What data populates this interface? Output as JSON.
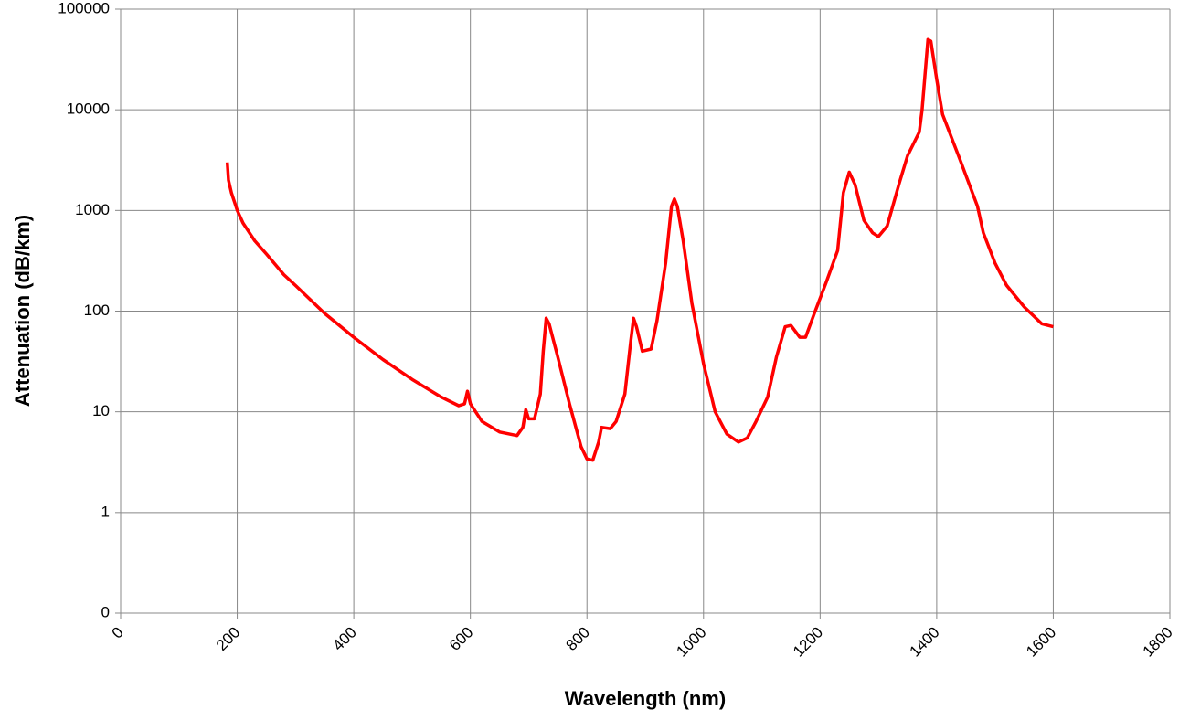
{
  "chart_data": {
    "type": "line",
    "x_label": "Wavelength (nm)",
    "y_label": "Attenuation (dB/km)",
    "log_y": true,
    "grid": true,
    "xlim": [
      0,
      1800
    ],
    "xticks": [
      0,
      200,
      400,
      600,
      800,
      1000,
      1200,
      1400,
      1600,
      1800
    ],
    "ylim": [
      0.1,
      100000
    ],
    "yticks": [
      {
        "value": 0.1,
        "label": "0"
      },
      1,
      10,
      100,
      1000,
      10000,
      100000
    ],
    "series": [
      {
        "name": "Attenuation",
        "color": "#ff0000",
        "x": [
          183,
          185,
          190,
          200,
          210,
          230,
          250,
          280,
          300,
          350,
          400,
          450,
          500,
          550,
          580,
          590,
          595,
          600,
          620,
          650,
          680,
          690,
          695,
          700,
          710,
          720,
          725,
          730,
          735,
          750,
          770,
          790,
          800,
          810,
          820,
          825,
          840,
          850,
          865,
          875,
          880,
          885,
          895,
          910,
          920,
          935,
          945,
          950,
          955,
          965,
          980,
          1000,
          1020,
          1040,
          1060,
          1075,
          1090,
          1110,
          1125,
          1140,
          1150,
          1165,
          1175,
          1190,
          1210,
          1230,
          1240,
          1250,
          1260,
          1275,
          1290,
          1300,
          1315,
          1335,
          1350,
          1370,
          1375,
          1385,
          1390,
          1400,
          1410,
          1440,
          1470,
          1480,
          1500,
          1520,
          1550,
          1580,
          1600
        ],
        "values": [
          3000,
          2000,
          1500,
          1000,
          750,
          500,
          370,
          230,
          180,
          95,
          55,
          33,
          21,
          14,
          11.5,
          12,
          16,
          12,
          8,
          6.3,
          5.8,
          7,
          10.5,
          8.5,
          8.5,
          15,
          40,
          85,
          75,
          35,
          12,
          4.5,
          3.4,
          3.3,
          5,
          7,
          6.8,
          8,
          15,
          50,
          85,
          70,
          40,
          42,
          80,
          300,
          1100,
          1300,
          1100,
          500,
          120,
          30,
          10,
          6,
          5,
          5.5,
          8,
          14,
          35,
          70,
          72,
          55,
          55,
          95,
          190,
          400,
          1500,
          2400,
          1800,
          800,
          600,
          550,
          700,
          1800,
          3500,
          6000,
          10000,
          50000,
          48000,
          20000,
          9000,
          3200,
          1100,
          600,
          300,
          180,
          110,
          75,
          70
        ]
      }
    ]
  }
}
